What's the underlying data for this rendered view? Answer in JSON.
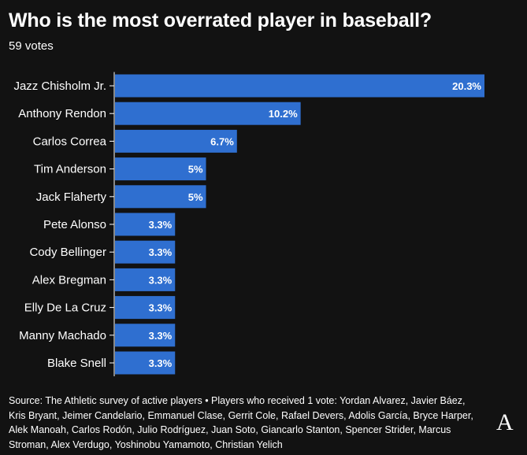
{
  "header": {
    "title": "Who is the most overrated player in baseball?",
    "subtitle": "59 votes"
  },
  "footer": {
    "text": "Source: The Athletic survey of active players • Players who received 1 vote: Yordan Alvarez, Javier Báez, Kris Bryant, Jeimer Candelario, Emmanuel Clase, Gerrit Cole, Rafael Devers, Adolis García, Bryce Harper, Alek Manoah, Carlos Rodón, Julio Rodríguez, Juan Soto, Giancarlo Stanton, Spencer Strider, Marcus Stroman, Alex Verdugo, Yoshinobu Yamamoto, Christian Yelich"
  },
  "logo": {
    "text": "A"
  },
  "colors": {
    "background": "#121212",
    "bar": "#2f6fd0",
    "text": "#ffffff",
    "axis": "#ffffff"
  },
  "chart_data": {
    "type": "bar",
    "orientation": "horizontal",
    "categories": [
      "Jazz Chisholm Jr.",
      "Anthony Rendon",
      "Carlos Correa",
      "Tim Anderson",
      "Jack Flaherty",
      "Pete Alonso",
      "Cody Bellinger",
      "Alex Bregman",
      "Elly De La Cruz",
      "Manny Machado",
      "Blake Snell"
    ],
    "values": [
      20.3,
      10.2,
      6.7,
      5,
      5,
      3.3,
      3.3,
      3.3,
      3.3,
      3.3,
      3.3
    ],
    "value_labels": [
      "20.3%",
      "10.2%",
      "6.7%",
      "5%",
      "5%",
      "3.3%",
      "3.3%",
      "3.3%",
      "3.3%",
      "3.3%",
      "3.3%"
    ],
    "title": "Who is the most overrated player in baseball?",
    "subtitle": "59 votes",
    "xlabel": "",
    "ylabel": "",
    "xlim": [
      0,
      20.3
    ],
    "grid": false,
    "legend": "none"
  }
}
